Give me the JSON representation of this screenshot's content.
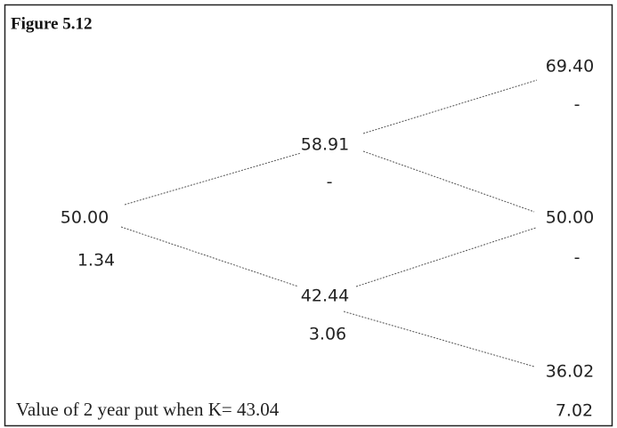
{
  "title": "Figure 5.12",
  "nodes": [
    {
      "price": "50.00",
      "value": "1.34"
    },
    {
      "price": "58.91",
      "value": "-"
    },
    {
      "price": "42.44",
      "value": "3.06"
    },
    {
      "price": "69.40",
      "value": "-"
    },
    {
      "price": "50.00",
      "value": "-"
    },
    {
      "price": "36.02",
      "value": "7.02"
    }
  ],
  "footer": "Value of 2 year put when K= 43.04"
}
